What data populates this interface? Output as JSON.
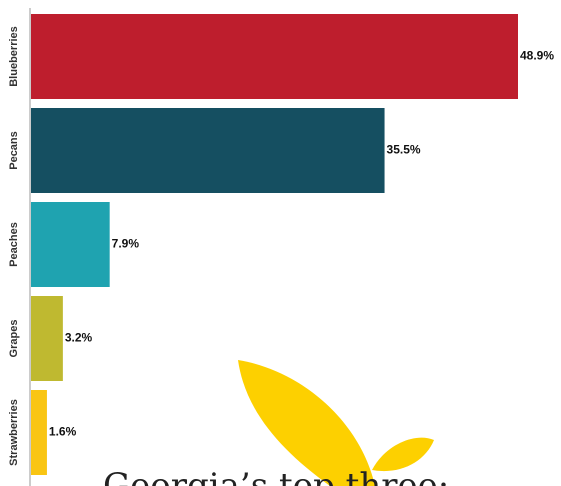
{
  "chart_data": {
    "type": "bar",
    "orientation": "horizontal",
    "categories": [
      "Blueberries",
      "Pecans",
      "Peaches",
      "Grapes",
      "Strawberries"
    ],
    "values": [
      48.9,
      35.5,
      7.9,
      3.2,
      1.6
    ],
    "value_labels": [
      "48.9%",
      "35.5%",
      "7.9%",
      "3.2%",
      "1.6%"
    ],
    "colors": [
      "#be1e2d",
      "#154f61",
      "#1fa3b0",
      "#bfb930",
      "#f9c513"
    ],
    "annotation": "Georgia’s top three:"
  }
}
